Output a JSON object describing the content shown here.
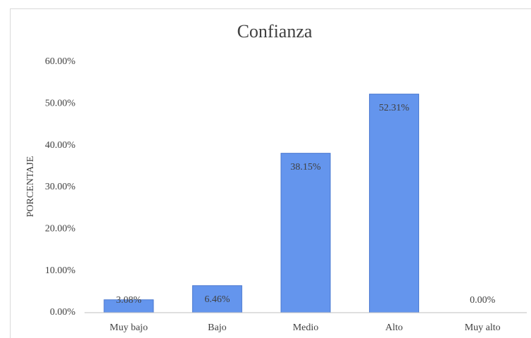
{
  "chart_data": {
    "type": "bar",
    "title": "Confianza",
    "y_label": "PORCENTAJE",
    "categories": [
      "Muy bajo",
      "Bajo",
      "Medio",
      "Alto",
      "Muy alto"
    ],
    "values": [
      3.08,
      6.46,
      38.15,
      52.31,
      0.0
    ],
    "value_labels": [
      "3.08%",
      "6.46%",
      "38.15%",
      "52.31%",
      "0.00%"
    ],
    "color": "#6495ed",
    "ylim": [
      0,
      60
    ],
    "yticks": [
      {
        "value": 0,
        "label": "0.00%"
      },
      {
        "value": 10,
        "label": "10.00%"
      },
      {
        "value": 20,
        "label": "20.00%"
      },
      {
        "value": 30,
        "label": "30.00%"
      },
      {
        "value": 40,
        "label": "40.00%"
      },
      {
        "value": 50,
        "label": "50.00%"
      },
      {
        "value": 60,
        "label": "60.00%"
      }
    ],
    "grid": false
  }
}
